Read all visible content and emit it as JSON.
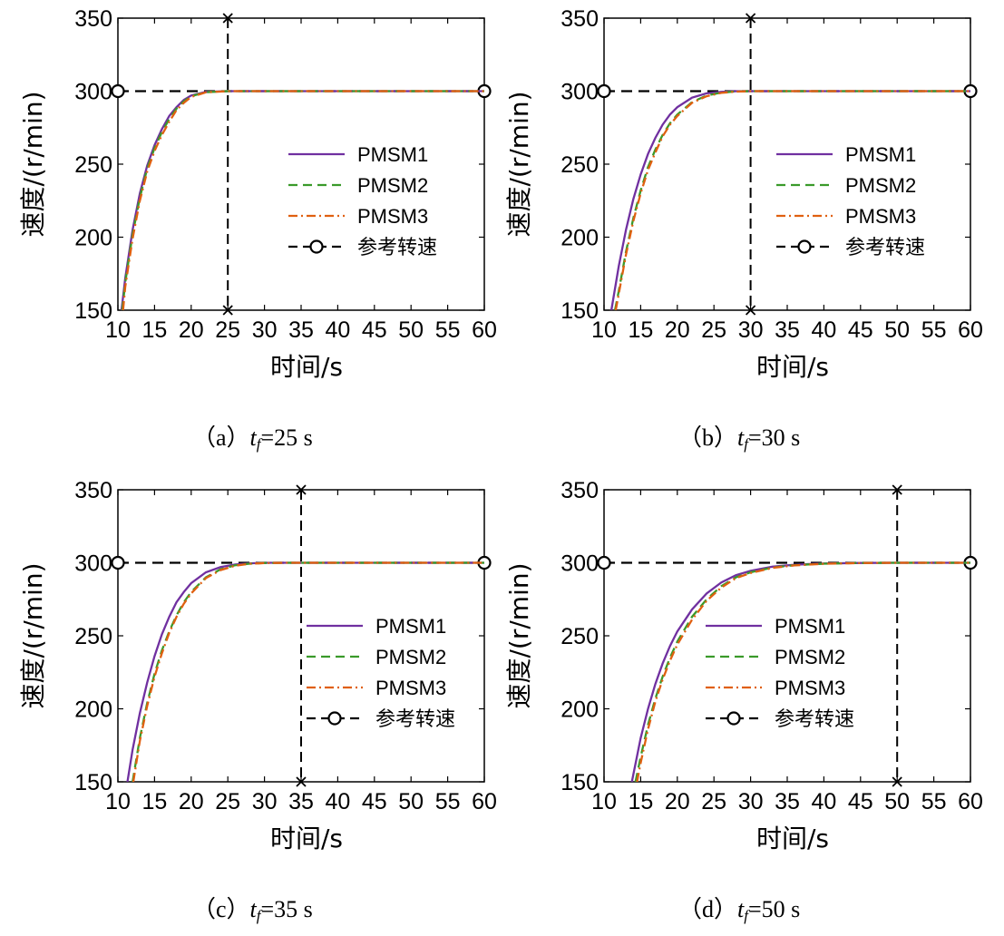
{
  "chart_data": [
    {
      "type": "line",
      "panel_label": "（a）",
      "tf_var": "t",
      "tf_sub": "f",
      "tf_value": "=25 s",
      "xlabel": "时间/s",
      "ylabel": "速度/(r/min)",
      "xlim": [
        10,
        60
      ],
      "ylim": [
        150,
        350
      ],
      "xticks": [
        10,
        15,
        20,
        25,
        30,
        35,
        40,
        45,
        50,
        55,
        60
      ],
      "yticks": [
        150,
        200,
        250,
        300,
        350
      ],
      "tf": 25,
      "reference_speed": 300,
      "legend": [
        "PMSM1",
        "PMSM2",
        "PMSM3",
        "参考转速"
      ],
      "series": [
        {
          "name": "PMSM1",
          "color": "#7030a0",
          "dash": "solid",
          "x": [
            10.5,
            11.0,
            12.0,
            13.0,
            14.0,
            15.0,
            16.0,
            17.0,
            18.0,
            19.0,
            20.0,
            22.0,
            25.0,
            30.0,
            40.0,
            50.0,
            60.0
          ],
          "y": [
            150,
            172,
            205,
            230,
            249,
            263,
            274,
            283,
            289,
            294,
            297,
            299.5,
            300,
            300,
            300,
            300,
            300
          ]
        },
        {
          "name": "PMSM2",
          "color": "#3a9a2a",
          "dash": "dashed",
          "x": [
            10.6,
            11.0,
            12.0,
            13.0,
            14.0,
            15.0,
            16.0,
            17.0,
            18.0,
            19.0,
            20.0,
            22.0,
            25.0,
            30.0,
            40.0,
            50.0,
            60.0
          ],
          "y": [
            150,
            169,
            202,
            227,
            247,
            261,
            272,
            281,
            288,
            293,
            296.5,
            299.3,
            300,
            300,
            300,
            300,
            300
          ]
        },
        {
          "name": "PMSM3",
          "color": "#e06010",
          "dash": "dashdot",
          "x": [
            10.7,
            11.0,
            12.0,
            13.0,
            14.0,
            15.0,
            16.0,
            17.0,
            18.0,
            19.0,
            20.0,
            22.0,
            25.0,
            30.0,
            40.0,
            50.0,
            60.0
          ],
          "y": [
            150,
            166,
            199,
            225,
            245,
            259,
            270,
            279,
            287,
            292,
            296,
            299.2,
            300,
            300,
            300,
            300,
            300
          ]
        }
      ]
    },
    {
      "type": "line",
      "panel_label": "（b）",
      "tf_var": "t",
      "tf_sub": "f",
      "tf_value": "=30 s",
      "xlabel": "时间/s",
      "ylabel": "速度/(r/min)",
      "xlim": [
        10,
        60
      ],
      "ylim": [
        150,
        350
      ],
      "xticks": [
        10,
        15,
        20,
        25,
        30,
        35,
        40,
        45,
        50,
        55,
        60
      ],
      "yticks": [
        150,
        200,
        250,
        300,
        350
      ],
      "tf": 30,
      "reference_speed": 300,
      "legend": [
        "PMSM1",
        "PMSM2",
        "PMSM3",
        "参考转速"
      ],
      "series": [
        {
          "name": "PMSM1",
          "color": "#7030a0",
          "dash": "solid",
          "x": [
            11.0,
            12.0,
            13.0,
            14.0,
            15.0,
            16.0,
            17.0,
            18.0,
            19.0,
            20.0,
            22.0,
            24.0,
            26.0,
            28.0,
            30.0,
            40.0,
            50.0,
            60.0
          ],
          "y": [
            150,
            180,
            205,
            226,
            243,
            257,
            268,
            277,
            284,
            289,
            295.5,
            298.5,
            299.5,
            300,
            300,
            300,
            300,
            300
          ]
        },
        {
          "name": "PMSM2",
          "color": "#3a9a2a",
          "dash": "dashed",
          "x": [
            11.5,
            12.0,
            13.0,
            14.0,
            15.0,
            16.0,
            17.0,
            18.0,
            19.0,
            20.0,
            22.0,
            24.0,
            26.0,
            28.0,
            30.0,
            40.0,
            50.0,
            60.0
          ],
          "y": [
            150,
            163,
            190,
            213,
            232,
            248,
            260,
            270,
            278,
            284,
            292.5,
            297,
            299,
            299.8,
            300,
            300,
            300,
            300
          ]
        },
        {
          "name": "PMSM3",
          "color": "#e06010",
          "dash": "dashdot",
          "x": [
            11.6,
            12.0,
            13.0,
            14.0,
            15.0,
            16.0,
            17.0,
            18.0,
            19.0,
            20.0,
            22.0,
            24.0,
            26.0,
            28.0,
            30.0,
            40.0,
            50.0,
            60.0
          ],
          "y": [
            150,
            161,
            188,
            211,
            230,
            246,
            258,
            269,
            277,
            283,
            292,
            296.5,
            298.8,
            299.7,
            300,
            300,
            300,
            300
          ]
        }
      ]
    },
    {
      "type": "line",
      "panel_label": "（c）",
      "tf_var": "t",
      "tf_sub": "f",
      "tf_value": "=35 s",
      "xlabel": "时间/s",
      "ylabel": "速度/(r/min)",
      "xlim": [
        10,
        60
      ],
      "ylim": [
        150,
        350
      ],
      "xticks": [
        10,
        15,
        20,
        25,
        30,
        35,
        40,
        45,
        50,
        55,
        60
      ],
      "yticks": [
        150,
        200,
        250,
        300,
        350
      ],
      "tf": 35,
      "reference_speed": 300,
      "legend": [
        "PMSM1",
        "PMSM2",
        "PMSM3",
        "参考转速"
      ],
      "series": [
        {
          "name": "PMSM1",
          "color": "#7030a0",
          "dash": "solid",
          "x": [
            11.3,
            12.0,
            13.0,
            14.0,
            15.0,
            16.0,
            17.0,
            18.0,
            19.0,
            20.0,
            22.0,
            24.0,
            26.0,
            28.0,
            30.0,
            33.0,
            35.0,
            45.0,
            60.0
          ],
          "y": [
            150,
            172,
            197,
            218,
            236,
            251,
            263,
            273,
            280,
            286,
            293.5,
            297,
            298.8,
            299.6,
            300,
            300,
            300,
            300,
            300
          ]
        },
        {
          "name": "PMSM2",
          "color": "#3a9a2a",
          "dash": "dashed",
          "x": [
            12.0,
            13.0,
            14.0,
            15.0,
            16.0,
            17.0,
            18.0,
            19.0,
            20.0,
            22.0,
            24.0,
            26.0,
            28.0,
            30.0,
            33.0,
            35.0,
            45.0,
            60.0
          ],
          "y": [
            150,
            180,
            204,
            224,
            240,
            253,
            264,
            273,
            280,
            290,
            295.5,
            298.3,
            299.4,
            299.9,
            300,
            300,
            300,
            300
          ]
        },
        {
          "name": "PMSM3",
          "color": "#e06010",
          "dash": "dashdot",
          "x": [
            12.1,
            13.0,
            14.0,
            15.0,
            16.0,
            17.0,
            18.0,
            19.0,
            20.0,
            22.0,
            24.0,
            26.0,
            28.0,
            30.0,
            33.0,
            35.0,
            45.0,
            60.0
          ],
          "y": [
            150,
            178,
            202,
            222,
            238,
            252,
            263,
            272,
            279,
            289.5,
            295,
            298,
            299.3,
            299.8,
            300,
            300,
            300,
            300
          ]
        }
      ]
    },
    {
      "type": "line",
      "panel_label": "（d）",
      "tf_var": "t",
      "tf_sub": "f",
      "tf_value": "=50 s",
      "xlabel": "时间/s",
      "ylabel": "速度/(r/min)",
      "xlim": [
        10,
        60
      ],
      "ylim": [
        150,
        350
      ],
      "xticks": [
        10,
        15,
        20,
        25,
        30,
        35,
        40,
        45,
        50,
        55,
        60
      ],
      "yticks": [
        150,
        200,
        250,
        300,
        350
      ],
      "tf": 50,
      "reference_speed": 300,
      "legend": [
        "PMSM1",
        "PMSM2",
        "PMSM3",
        "参考转速"
      ],
      "series": [
        {
          "name": "PMSM1",
          "color": "#7030a0",
          "dash": "solid",
          "x": [
            13.8,
            15.0,
            16.0,
            17.0,
            18.0,
            19.0,
            20.0,
            22.0,
            24.0,
            26.0,
            28.0,
            30.0,
            33.0,
            36.0,
            40.0,
            45.0,
            50.0,
            55.0,
            60.0
          ],
          "y": [
            150,
            180,
            200,
            217,
            231,
            243,
            253,
            268,
            279,
            286.5,
            291.5,
            294.5,
            297.3,
            298.7,
            299.5,
            299.9,
            300,
            300,
            300
          ]
        },
        {
          "name": "PMSM2",
          "color": "#3a9a2a",
          "dash": "dashed",
          "x": [
            14.3,
            15.0,
            16.0,
            17.0,
            18.0,
            19.0,
            20.0,
            22.0,
            24.0,
            26.0,
            28.0,
            30.0,
            33.0,
            36.0,
            40.0,
            45.0,
            50.0,
            55.0,
            60.0
          ],
          "y": [
            150,
            167,
            189,
            207,
            222,
            235,
            246,
            263,
            275,
            284,
            290,
            293.5,
            296.8,
            298.4,
            299.4,
            299.9,
            300,
            300,
            300
          ]
        },
        {
          "name": "PMSM3",
          "color": "#e06010",
          "dash": "dashdot",
          "x": [
            14.5,
            15.0,
            16.0,
            17.0,
            18.0,
            19.0,
            20.0,
            22.0,
            24.0,
            26.0,
            28.0,
            30.0,
            33.0,
            36.0,
            40.0,
            45.0,
            50.0,
            55.0,
            60.0
          ],
          "y": [
            150,
            163,
            186,
            205,
            220,
            233,
            244,
            261,
            274,
            283,
            289.5,
            293,
            296.5,
            298.2,
            299.3,
            299.8,
            300,
            300,
            300
          ]
        }
      ]
    }
  ]
}
